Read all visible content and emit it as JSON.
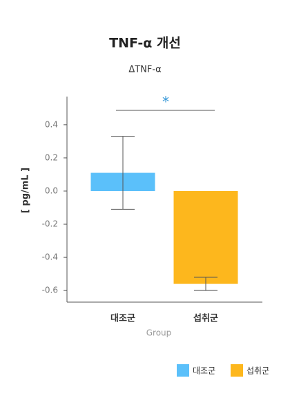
{
  "chart_data": {
    "type": "bar",
    "title": "TNF-α 개선",
    "subtitle": "ΔTNF-α",
    "x_label": "Group",
    "y_label": "[ pg/mL ]",
    "categories": [
      "대조군",
      "섭취군"
    ],
    "values": [
      0.11,
      -0.56
    ],
    "errors": [
      0.22,
      0.04
    ],
    "colors": [
      "#5bc0fa",
      "#fdb71d"
    ],
    "ylim": [
      -0.67,
      0.57
    ],
    "yticks": [
      0.4,
      0.2,
      {
        "value": 0,
        "label": "0.0"
      },
      -0.2,
      -0.4,
      -0.6
    ],
    "annotation": "*",
    "legend": "bottom-right"
  }
}
